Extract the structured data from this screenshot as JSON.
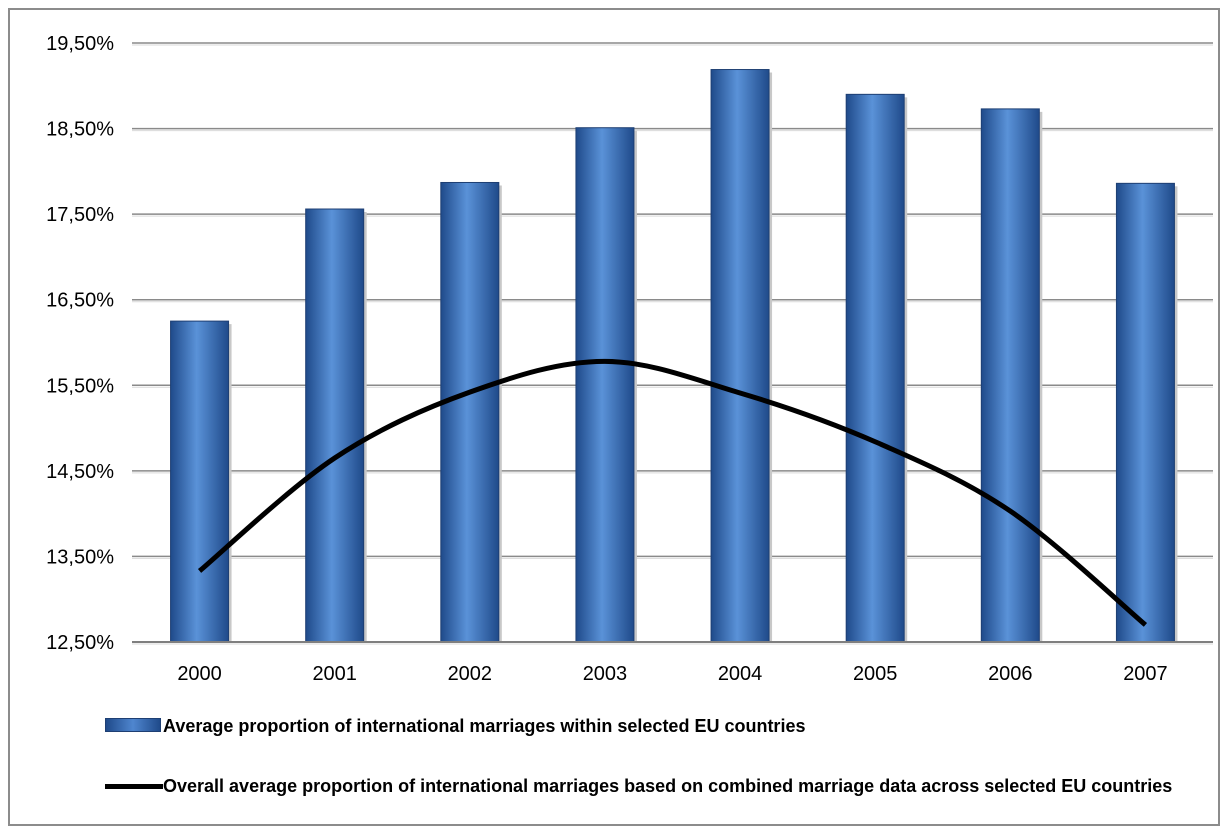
{
  "chart_data": {
    "type": "bar",
    "categories": [
      "2000",
      "2001",
      "2002",
      "2003",
      "2004",
      "2005",
      "2006",
      "2007"
    ],
    "series": [
      {
        "name": "Average proportion of international marriages within selected EU countries",
        "type": "bar",
        "values": [
          16.25,
          17.56,
          17.87,
          18.51,
          19.19,
          18.9,
          18.73,
          17.86
        ],
        "color": "#3a6fb5"
      },
      {
        "name": "Overall average proportion of international marriages based on combined marriage data across selected EU countries",
        "type": "line",
        "values": [
          13.33,
          14.65,
          15.42,
          15.78,
          15.41,
          14.84,
          14.03,
          12.7
        ],
        "color": "#000000"
      }
    ],
    "y_ticks": [
      "19,50%",
      "18,50%",
      "17,50%",
      "16,50%",
      "15,50%",
      "14,50%",
      "13,50%",
      "12,50%"
    ],
    "ylim": [
      12.5,
      19.5
    ],
    "title": "",
    "xlabel": "",
    "ylabel": "",
    "grid": true,
    "legend_position": "bottom"
  }
}
